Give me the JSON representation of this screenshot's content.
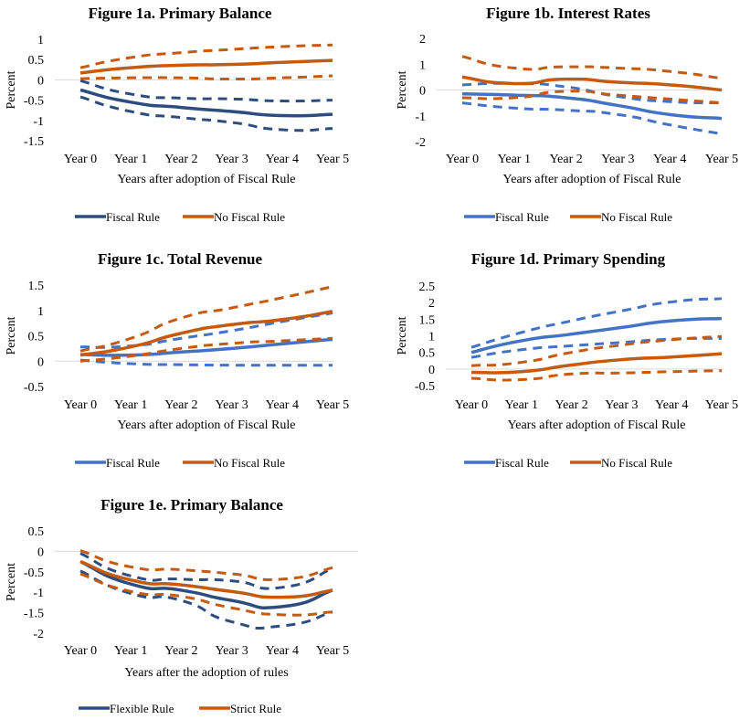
{
  "chart_data": [
    {
      "type": "line",
      "title": "Figure 1a. Primary Balance",
      "xlabel": "Years after adoption of Fiscal Rule",
      "ylabel": "Percent",
      "categories": [
        "Year 0",
        "Year 1",
        "Year 2",
        "Year 3",
        "Year 4",
        "Year 5"
      ],
      "yticks": [
        "-1.5",
        "-1",
        "-0.5",
        "0",
        "0.5",
        "1"
      ],
      "ylim": [
        -1.5,
        1
      ],
      "colors": {
        "Fiscal Rule": "#2e4d7f",
        "No Fiscal Rule": "#c55a11"
      },
      "legend": [
        "Fiscal Rule",
        "No Fiscal Rule"
      ],
      "series": [
        {
          "name": "Fiscal Rule",
          "values": [
            -0.25,
            -0.55,
            -0.68,
            -0.78,
            -0.88,
            -0.85
          ]
        },
        {
          "values": [
            -0.02,
            -0.35,
            -0.45,
            -0.47,
            -0.52,
            -0.5
          ],
          "style": "dashed",
          "group": "Fiscal Rule"
        },
        {
          "values": [
            -0.42,
            -0.78,
            -0.93,
            -1.05,
            -1.23,
            -1.2
          ],
          "style": "dashed",
          "group": "Fiscal Rule"
        },
        {
          "name": "No Fiscal Rule",
          "values": [
            0.17,
            0.3,
            0.36,
            0.38,
            0.43,
            0.48
          ]
        },
        {
          "values": [
            0.3,
            0.55,
            0.67,
            0.75,
            0.82,
            0.86
          ],
          "style": "dashed",
          "group": "No Fiscal Rule"
        },
        {
          "values": [
            0.03,
            0.05,
            0.05,
            0.02,
            0.05,
            0.1
          ],
          "style": "dashed",
          "group": "No Fiscal Rule"
        }
      ]
    },
    {
      "type": "line",
      "title": "Figure 1b. Interest Rates",
      "xlabel": "Years after adoption of Fiscal Rule",
      "ylabel": "Percent",
      "categories": [
        "Year 0",
        "Year 1",
        "Year 2",
        "Year 3",
        "Year 4",
        "Year 5"
      ],
      "yticks": [
        "-2",
        "-1",
        "0",
        "1",
        "2"
      ],
      "ylim": [
        -2,
        2
      ],
      "colors": {
        "Fiscal Rule": "#4472c4",
        "No Fiscal Rule": "#c55a11"
      },
      "legend": [
        "Fiscal Rule",
        "No Fiscal Rule"
      ],
      "series": [
        {
          "name": "Fiscal Rule",
          "values": [
            -0.15,
            -0.2,
            -0.3,
            -0.6,
            -0.95,
            -1.1
          ]
        },
        {
          "values": [
            0.2,
            0.25,
            0.12,
            -0.25,
            -0.45,
            -0.5
          ],
          "style": "dashed",
          "group": "Fiscal Rule"
        },
        {
          "values": [
            -0.5,
            -0.7,
            -0.78,
            -0.95,
            -1.35,
            -1.7
          ],
          "style": "dashed",
          "group": "Fiscal Rule"
        },
        {
          "name": "No Fiscal Rule",
          "values": [
            0.5,
            0.25,
            0.42,
            0.3,
            0.2,
            0.0
          ]
        },
        {
          "values": [
            1.3,
            0.85,
            0.9,
            0.85,
            0.72,
            0.45
          ],
          "style": "dashed",
          "group": "No Fiscal Rule"
        },
        {
          "values": [
            -0.3,
            -0.3,
            -0.05,
            -0.2,
            -0.35,
            -0.5
          ],
          "style": "dashed",
          "group": "No Fiscal Rule"
        }
      ]
    },
    {
      "type": "line",
      "title": "Figure 1c. Total Revenue",
      "xlabel": "Years after adoption of Fiscal Rule",
      "ylabel": "Percent",
      "categories": [
        "Year 0",
        "Year 1",
        "Year 2",
        "Year 3",
        "Year 4",
        "Year 5"
      ],
      "yticks": [
        "-0.5",
        "0",
        "0.5",
        "1",
        "1.5"
      ],
      "ylim": [
        -0.5,
        1.5
      ],
      "colors": {
        "Fiscal Rule": "#4472c4",
        "No Fiscal Rule": "#c55a11"
      },
      "legend": [
        "Fiscal Rule",
        "No Fiscal Rule"
      ],
      "series": [
        {
          "name": "Fiscal Rule",
          "values": [
            0.13,
            0.12,
            0.18,
            0.25,
            0.34,
            0.43
          ]
        },
        {
          "values": [
            0.28,
            0.3,
            0.45,
            0.6,
            0.78,
            0.95
          ],
          "style": "dashed",
          "group": "Fiscal Rule"
        },
        {
          "values": [
            0.02,
            -0.05,
            -0.07,
            -0.08,
            -0.08,
            -0.08
          ],
          "style": "dashed",
          "group": "Fiscal Rule"
        },
        {
          "name": "No Fiscal Rule",
          "values": [
            0.12,
            0.28,
            0.55,
            0.72,
            0.82,
            0.98
          ]
        },
        {
          "values": [
            0.2,
            0.45,
            0.85,
            1.05,
            1.25,
            1.47
          ],
          "style": "dashed",
          "group": "No Fiscal Rule"
        },
        {
          "values": [
            0.0,
            0.1,
            0.25,
            0.35,
            0.4,
            0.45
          ],
          "style": "dashed",
          "group": "No Fiscal Rule"
        }
      ]
    },
    {
      "type": "line",
      "title": "Figure 1d. Primary Spending",
      "xlabel": "Years after adoption of Fiscal Rule",
      "ylabel": "Percent",
      "categories": [
        "Year 0",
        "Year 1",
        "Year 2",
        "Year 3",
        "Year 4",
        "Year 5"
      ],
      "yticks": [
        "-0.5",
        "0",
        "0.5",
        "1",
        "1.5",
        "2",
        "2.5"
      ],
      "ylim": [
        -0.5,
        2.5
      ],
      "colors": {
        "Fiscal Rule": "#4472c4",
        "No Fiscal Rule": "#c55a11"
      },
      "legend": [
        "Fiscal Rule",
        "No Fiscal Rule"
      ],
      "series": [
        {
          "name": "Fiscal Rule",
          "values": [
            0.5,
            0.85,
            1.05,
            1.25,
            1.45,
            1.52
          ]
        },
        {
          "values": [
            0.65,
            1.1,
            1.45,
            1.75,
            2.02,
            2.12
          ],
          "style": "dashed",
          "group": "Fiscal Rule"
        },
        {
          "values": [
            0.35,
            0.58,
            0.7,
            0.8,
            0.9,
            0.92
          ],
          "style": "dashed",
          "group": "Fiscal Rule"
        },
        {
          "name": "No Fiscal Rule",
          "values": [
            -0.1,
            -0.08,
            0.12,
            0.28,
            0.36,
            0.46
          ]
        },
        {
          "values": [
            0.1,
            0.2,
            0.5,
            0.72,
            0.88,
            0.98
          ],
          "style": "dashed",
          "group": "No Fiscal Rule"
        },
        {
          "values": [
            -0.28,
            -0.32,
            -0.15,
            -0.12,
            -0.08,
            -0.05
          ],
          "style": "dashed",
          "group": "No Fiscal Rule"
        }
      ]
    },
    {
      "type": "line",
      "title": "Figure 1e. Primary Balance",
      "xlabel": "Years after the adoption of rules",
      "ylabel": "Percent",
      "categories": [
        "Year 0",
        "Year 1",
        "Year 2",
        "Year 3",
        "Year 4",
        "Year 5"
      ],
      "yticks": [
        "-2",
        "-1.5",
        "-1",
        "-0.5",
        "0",
        "0.5"
      ],
      "ylim": [
        -2,
        0.5
      ],
      "colors": {
        "Flexible Rule": "#2e4d7f",
        "Strict Rule": "#c55a11"
      },
      "legend": [
        "Flexible Rule",
        "Strict Rule"
      ],
      "series": [
        {
          "name": "Flexible Rule",
          "values": [
            -0.25,
            -0.8,
            -0.95,
            -1.2,
            -1.35,
            -0.95
          ]
        },
        {
          "values": [
            -0.05,
            -0.6,
            -0.68,
            -0.72,
            -0.88,
            -0.42
          ],
          "style": "dashed",
          "group": "Flexible Rule"
        },
        {
          "values": [
            -0.48,
            -1.03,
            -1.2,
            -1.72,
            -1.82,
            -1.48
          ],
          "style": "dashed",
          "group": "Flexible Rule"
        },
        {
          "name": "Strict Rule",
          "values": [
            -0.25,
            -0.7,
            -0.82,
            -0.98,
            -1.12,
            -0.95
          ]
        },
        {
          "values": [
            0.02,
            -0.38,
            -0.45,
            -0.55,
            -0.68,
            -0.4
          ],
          "style": "dashed",
          "group": "Strict Rule"
        },
        {
          "values": [
            -0.55,
            -0.98,
            -1.1,
            -1.38,
            -1.55,
            -1.48
          ],
          "style": "dashed",
          "group": "Strict Rule"
        }
      ]
    }
  ]
}
